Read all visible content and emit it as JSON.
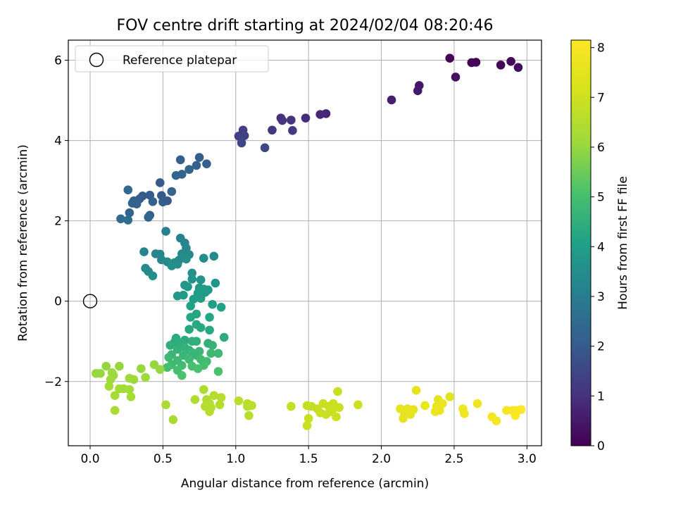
{
  "chart_data": {
    "type": "scatter",
    "title": "FOV centre drift starting at 2024/02/04 08:20:46",
    "xlabel": "Angular distance from reference (arcmin)",
    "ylabel": "Rotation from reference (arcmin)",
    "xlim": [
      -0.15,
      3.1
    ],
    "ylim": [
      -3.6,
      6.5
    ],
    "xticks": [
      "0.0",
      "0.5",
      "1.0",
      "1.5",
      "2.0",
      "2.5",
      "3.0"
    ],
    "yticks": [
      "−2",
      "0",
      "2",
      "4",
      "6"
    ],
    "grid": true,
    "legend": {
      "placement": "top-left",
      "entries": [
        "Reference platepar"
      ]
    },
    "reference_point": {
      "x": 0.0,
      "y": 0.0,
      "label": "Reference platepar",
      "marker": "open-circle"
    },
    "colorbar": {
      "label": "Hours from first FF file",
      "range": [
        0,
        8.15
      ],
      "ticks": [
        "0",
        "1",
        "2",
        "3",
        "4",
        "5",
        "6",
        "7",
        "8"
      ],
      "colormap": "viridis"
    },
    "points": [
      {
        "x": 2.47,
        "y": 6.05,
        "c": 0.05
      },
      {
        "x": 2.62,
        "y": 5.94,
        "c": 0.1
      },
      {
        "x": 2.65,
        "y": 5.95,
        "c": 0.12
      },
      {
        "x": 2.82,
        "y": 5.88,
        "c": 0.15
      },
      {
        "x": 2.89,
        "y": 5.97,
        "c": 0.18
      },
      {
        "x": 2.94,
        "y": 5.82,
        "c": 0.2
      },
      {
        "x": 2.51,
        "y": 5.58,
        "c": 0.3
      },
      {
        "x": 2.26,
        "y": 5.37,
        "c": 0.45
      },
      {
        "x": 2.25,
        "y": 5.24,
        "c": 0.5
      },
      {
        "x": 2.07,
        "y": 5.01,
        "c": 0.6
      },
      {
        "x": 1.62,
        "y": 4.67,
        "c": 0.8
      },
      {
        "x": 1.58,
        "y": 4.65,
        "c": 0.85
      },
      {
        "x": 1.48,
        "y": 4.56,
        "c": 0.9
      },
      {
        "x": 1.31,
        "y": 4.56,
        "c": 1.0
      },
      {
        "x": 1.32,
        "y": 4.5,
        "c": 1.05
      },
      {
        "x": 1.38,
        "y": 4.51,
        "c": 1.1
      },
      {
        "x": 1.25,
        "y": 4.26,
        "c": 1.15
      },
      {
        "x": 1.39,
        "y": 4.25,
        "c": 1.2
      },
      {
        "x": 1.05,
        "y": 4.26,
        "c": 1.3
      },
      {
        "x": 1.02,
        "y": 4.11,
        "c": 1.35
      },
      {
        "x": 1.06,
        "y": 4.12,
        "c": 1.4
      },
      {
        "x": 1.04,
        "y": 3.94,
        "c": 1.5
      },
      {
        "x": 1.2,
        "y": 3.82,
        "c": 1.5
      },
      {
        "x": 0.75,
        "y": 3.58,
        "c": 2.1
      },
      {
        "x": 0.62,
        "y": 3.52,
        "c": 2.1
      },
      {
        "x": 0.8,
        "y": 3.42,
        "c": 2.15
      },
      {
        "x": 0.73,
        "y": 3.38,
        "c": 2.2
      },
      {
        "x": 0.68,
        "y": 3.28,
        "c": 2.25
      },
      {
        "x": 0.63,
        "y": 3.16,
        "c": 2.3
      },
      {
        "x": 0.59,
        "y": 3.13,
        "c": 2.3
      },
      {
        "x": 0.48,
        "y": 2.95,
        "c": 2.0
      },
      {
        "x": 0.26,
        "y": 2.77,
        "c": 2.4
      },
      {
        "x": 0.56,
        "y": 2.73,
        "c": 2.3
      },
      {
        "x": 0.41,
        "y": 2.64,
        "c": 2.0
      },
      {
        "x": 0.36,
        "y": 2.62,
        "c": 2.0
      },
      {
        "x": 0.49,
        "y": 2.63,
        "c": 2.0
      },
      {
        "x": 0.3,
        "y": 2.5,
        "c": 2.1
      },
      {
        "x": 0.34,
        "y": 2.55,
        "c": 2.1
      },
      {
        "x": 0.43,
        "y": 2.48,
        "c": 2.2
      },
      {
        "x": 0.5,
        "y": 2.47,
        "c": 2.1
      },
      {
        "x": 0.53,
        "y": 2.5,
        "c": 2.0
      },
      {
        "x": 0.29,
        "y": 2.44,
        "c": 2.2
      },
      {
        "x": 0.32,
        "y": 2.42,
        "c": 2.2
      },
      {
        "x": 0.27,
        "y": 2.2,
        "c": 2.3
      },
      {
        "x": 0.41,
        "y": 2.14,
        "c": 2.2
      },
      {
        "x": 0.4,
        "y": 2.09,
        "c": 2.3
      },
      {
        "x": 0.21,
        "y": 2.05,
        "c": 2.5
      },
      {
        "x": 0.26,
        "y": 2.02,
        "c": 2.5
      },
      {
        "x": 0.52,
        "y": 1.74,
        "c": 3.1
      },
      {
        "x": 0.62,
        "y": 1.57,
        "c": 3.2
      },
      {
        "x": 0.65,
        "y": 1.45,
        "c": 3.2
      },
      {
        "x": 0.66,
        "y": 1.32,
        "c": 3.3
      },
      {
        "x": 0.37,
        "y": 1.23,
        "c": 3.2
      },
      {
        "x": 0.45,
        "y": 1.18,
        "c": 3.3
      },
      {
        "x": 0.48,
        "y": 1.17,
        "c": 3.3
      },
      {
        "x": 0.63,
        "y": 1.18,
        "c": 3.35
      },
      {
        "x": 0.68,
        "y": 1.16,
        "c": 3.4
      },
      {
        "x": 0.85,
        "y": 1.12,
        "c": 3.4
      },
      {
        "x": 0.78,
        "y": 1.07,
        "c": 3.45
      },
      {
        "x": 0.49,
        "y": 1.03,
        "c": 3.3
      },
      {
        "x": 0.53,
        "y": 0.98,
        "c": 3.4
      },
      {
        "x": 0.58,
        "y": 0.96,
        "c": 3.4
      },
      {
        "x": 0.61,
        "y": 1.02,
        "c": 3.4
      },
      {
        "x": 0.66,
        "y": 1.05,
        "c": 3.5
      },
      {
        "x": 0.56,
        "y": 0.88,
        "c": 3.5
      },
      {
        "x": 0.6,
        "y": 0.92,
        "c": 3.5
      },
      {
        "x": 0.38,
        "y": 0.82,
        "c": 3.4
      },
      {
        "x": 0.4,
        "y": 0.74,
        "c": 3.4
      },
      {
        "x": 0.7,
        "y": 0.7,
        "c": 3.6
      },
      {
        "x": 0.43,
        "y": 0.63,
        "c": 3.5
      },
      {
        "x": 0.7,
        "y": 0.55,
        "c": 3.7
      },
      {
        "x": 0.76,
        "y": 0.53,
        "c": 3.7
      },
      {
        "x": 0.86,
        "y": 0.45,
        "c": 3.7
      },
      {
        "x": 0.65,
        "y": 0.4,
        "c": 3.8
      },
      {
        "x": 0.67,
        "y": 0.36,
        "c": 3.8
      },
      {
        "x": 0.75,
        "y": 0.33,
        "c": 3.8
      },
      {
        "x": 0.78,
        "y": 0.3,
        "c": 3.9
      },
      {
        "x": 0.81,
        "y": 0.28,
        "c": 3.9
      },
      {
        "x": 0.74,
        "y": 0.2,
        "c": 3.9
      },
      {
        "x": 0.79,
        "y": 0.22,
        "c": 3.9
      },
      {
        "x": 0.6,
        "y": 0.13,
        "c": 3.8
      },
      {
        "x": 0.64,
        "y": 0.15,
        "c": 3.9
      },
      {
        "x": 0.71,
        "y": 0.05,
        "c": 4.0
      },
      {
        "x": 0.76,
        "y": 0.07,
        "c": 4.0
      },
      {
        "x": 0.84,
        "y": -0.08,
        "c": 4.0
      },
      {
        "x": 0.69,
        "y": -0.12,
        "c": 4.1
      },
      {
        "x": 0.9,
        "y": -0.15,
        "c": 4.1
      },
      {
        "x": 0.73,
        "y": -0.32,
        "c": 4.2
      },
      {
        "x": 0.69,
        "y": -0.4,
        "c": 4.2
      },
      {
        "x": 0.82,
        "y": -0.4,
        "c": 4.2
      },
      {
        "x": 0.73,
        "y": -0.58,
        "c": 4.3
      },
      {
        "x": 0.76,
        "y": -0.66,
        "c": 4.3
      },
      {
        "x": 0.68,
        "y": -0.7,
        "c": 4.3
      },
      {
        "x": 0.82,
        "y": -0.72,
        "c": 4.3
      },
      {
        "x": 0.59,
        "y": -0.92,
        "c": 4.4
      },
      {
        "x": 0.65,
        "y": -0.97,
        "c": 4.4
      },
      {
        "x": 0.92,
        "y": -0.9,
        "c": 4.4
      },
      {
        "x": 0.58,
        "y": -1.02,
        "c": 4.4
      },
      {
        "x": 0.7,
        "y": -1.0,
        "c": 4.5
      },
      {
        "x": 0.73,
        "y": -1.0,
        "c": 4.5
      },
      {
        "x": 0.55,
        "y": -1.1,
        "c": 4.5
      },
      {
        "x": 0.62,
        "y": -1.05,
        "c": 4.5
      },
      {
        "x": 0.81,
        "y": -1.05,
        "c": 4.5
      },
      {
        "x": 0.84,
        "y": -1.1,
        "c": 4.6
      },
      {
        "x": 0.6,
        "y": -1.2,
        "c": 4.6
      },
      {
        "x": 0.65,
        "y": -1.15,
        "c": 4.6
      },
      {
        "x": 0.68,
        "y": -1.22,
        "c": 4.6
      },
      {
        "x": 0.7,
        "y": -1.28,
        "c": 4.7
      },
      {
        "x": 0.75,
        "y": -1.25,
        "c": 4.7
      },
      {
        "x": 0.56,
        "y": -1.33,
        "c": 4.7
      },
      {
        "x": 0.64,
        "y": -1.35,
        "c": 4.7
      },
      {
        "x": 0.73,
        "y": -1.35,
        "c": 4.7
      },
      {
        "x": 0.83,
        "y": -1.3,
        "c": 4.8
      },
      {
        "x": 0.88,
        "y": -1.3,
        "c": 4.8
      },
      {
        "x": 0.54,
        "y": -1.4,
        "c": 4.8
      },
      {
        "x": 0.6,
        "y": -1.48,
        "c": 4.8
      },
      {
        "x": 0.68,
        "y": -1.45,
        "c": 4.8
      },
      {
        "x": 0.76,
        "y": -1.45,
        "c": 4.9
      },
      {
        "x": 0.8,
        "y": -1.5,
        "c": 4.9
      },
      {
        "x": 0.56,
        "y": -1.58,
        "c": 4.9
      },
      {
        "x": 0.63,
        "y": -1.6,
        "c": 4.9
      },
      {
        "x": 0.7,
        "y": -1.62,
        "c": 5.0
      },
      {
        "x": 0.78,
        "y": -1.6,
        "c": 5.0
      },
      {
        "x": 0.53,
        "y": -1.65,
        "c": 5.0
      },
      {
        "x": 0.6,
        "y": -1.72,
        "c": 5.0
      },
      {
        "x": 0.74,
        "y": -1.68,
        "c": 5.1
      },
      {
        "x": 0.88,
        "y": -1.75,
        "c": 5.1
      },
      {
        "x": 0.63,
        "y": -1.85,
        "c": 5.1
      },
      {
        "x": 0.04,
        "y": -1.8,
        "c": 6.0
      },
      {
        "x": 0.07,
        "y": -1.8,
        "c": 6.0
      },
      {
        "x": 0.11,
        "y": -1.62,
        "c": 6.0
      },
      {
        "x": 0.15,
        "y": -1.78,
        "c": 6.1
      },
      {
        "x": 0.2,
        "y": -1.62,
        "c": 6.0
      },
      {
        "x": 0.35,
        "y": -1.68,
        "c": 6.0
      },
      {
        "x": 0.44,
        "y": -1.58,
        "c": 6.0
      },
      {
        "x": 0.48,
        "y": -1.7,
        "c": 6.0
      },
      {
        "x": 0.16,
        "y": -1.85,
        "c": 6.1
      },
      {
        "x": 0.14,
        "y": -1.95,
        "c": 6.1
      },
      {
        "x": 0.27,
        "y": -1.92,
        "c": 6.1
      },
      {
        "x": 0.3,
        "y": -1.95,
        "c": 6.1
      },
      {
        "x": 0.38,
        "y": -1.9,
        "c": 6.1
      },
      {
        "x": 0.13,
        "y": -2.12,
        "c": 6.2
      },
      {
        "x": 0.2,
        "y": -2.18,
        "c": 6.2
      },
      {
        "x": 0.23,
        "y": -2.18,
        "c": 6.2
      },
      {
        "x": 0.27,
        "y": -2.2,
        "c": 6.2
      },
      {
        "x": 0.17,
        "y": -2.35,
        "c": 6.2
      },
      {
        "x": 0.28,
        "y": -2.38,
        "c": 6.2
      },
      {
        "x": 0.17,
        "y": -2.72,
        "c": 6.3
      },
      {
        "x": 0.52,
        "y": -2.58,
        "c": 6.3
      },
      {
        "x": 0.57,
        "y": -2.95,
        "c": 6.3
      },
      {
        "x": 0.72,
        "y": -2.45,
        "c": 6.4
      },
      {
        "x": 0.78,
        "y": -2.2,
        "c": 6.4
      },
      {
        "x": 0.8,
        "y": -2.45,
        "c": 6.4
      },
      {
        "x": 0.79,
        "y": -2.62,
        "c": 6.5
      },
      {
        "x": 0.82,
        "y": -2.55,
        "c": 6.5
      },
      {
        "x": 0.83,
        "y": -2.65,
        "c": 6.5
      },
      {
        "x": 0.85,
        "y": -2.35,
        "c": 6.5
      },
      {
        "x": 0.9,
        "y": -2.4,
        "c": 6.5
      },
      {
        "x": 0.89,
        "y": -2.58,
        "c": 6.5
      },
      {
        "x": 0.82,
        "y": -2.75,
        "c": 6.5
      },
      {
        "x": 1.02,
        "y": -2.48,
        "c": 6.6
      },
      {
        "x": 1.08,
        "y": -2.55,
        "c": 6.6
      },
      {
        "x": 1.11,
        "y": -2.6,
        "c": 6.6
      },
      {
        "x": 1.08,
        "y": -2.62,
        "c": 6.6
      },
      {
        "x": 1.09,
        "y": -2.85,
        "c": 6.6
      },
      {
        "x": 1.38,
        "y": -2.62,
        "c": 6.8
      },
      {
        "x": 1.49,
        "y": -2.6,
        "c": 6.8
      },
      {
        "x": 1.52,
        "y": -2.62,
        "c": 6.8
      },
      {
        "x": 1.56,
        "y": -2.68,
        "c": 6.8
      },
      {
        "x": 1.6,
        "y": -2.55,
        "c": 6.9
      },
      {
        "x": 1.64,
        "y": -2.62,
        "c": 6.9
      },
      {
        "x": 1.67,
        "y": -2.55,
        "c": 6.9
      },
      {
        "x": 1.7,
        "y": -2.25,
        "c": 6.9
      },
      {
        "x": 1.71,
        "y": -2.65,
        "c": 6.9
      },
      {
        "x": 1.58,
        "y": -2.78,
        "c": 6.9
      },
      {
        "x": 1.62,
        "y": -2.82,
        "c": 6.9
      },
      {
        "x": 1.66,
        "y": -2.75,
        "c": 6.9
      },
      {
        "x": 1.69,
        "y": -2.88,
        "c": 7.0
      },
      {
        "x": 1.5,
        "y": -2.92,
        "c": 6.9
      },
      {
        "x": 1.49,
        "y": -3.1,
        "c": 6.9
      },
      {
        "x": 1.84,
        "y": -2.58,
        "c": 7.0
      },
      {
        "x": 2.24,
        "y": -2.22,
        "c": 7.5
      },
      {
        "x": 2.47,
        "y": -2.38,
        "c": 7.5
      },
      {
        "x": 2.39,
        "y": -2.45,
        "c": 7.6
      },
      {
        "x": 2.13,
        "y": -2.68,
        "c": 7.6
      },
      {
        "x": 2.18,
        "y": -2.68,
        "c": 7.6
      },
      {
        "x": 2.22,
        "y": -2.7,
        "c": 7.6
      },
      {
        "x": 2.16,
        "y": -2.8,
        "c": 7.6
      },
      {
        "x": 2.2,
        "y": -2.82,
        "c": 7.6
      },
      {
        "x": 2.3,
        "y": -2.6,
        "c": 7.7
      },
      {
        "x": 2.38,
        "y": -2.62,
        "c": 7.7
      },
      {
        "x": 2.42,
        "y": -2.55,
        "c": 7.7
      },
      {
        "x": 2.37,
        "y": -2.75,
        "c": 7.7
      },
      {
        "x": 2.4,
        "y": -2.72,
        "c": 7.7
      },
      {
        "x": 2.15,
        "y": -2.92,
        "c": 7.6
      },
      {
        "x": 2.56,
        "y": -2.68,
        "c": 7.8
      },
      {
        "x": 2.57,
        "y": -2.8,
        "c": 7.8
      },
      {
        "x": 2.66,
        "y": -2.55,
        "c": 7.8
      },
      {
        "x": 2.76,
        "y": -2.88,
        "c": 7.9
      },
      {
        "x": 2.79,
        "y": -2.98,
        "c": 7.9
      },
      {
        "x": 2.86,
        "y": -2.72,
        "c": 8.0
      },
      {
        "x": 2.9,
        "y": -2.72,
        "c": 8.0
      },
      {
        "x": 2.93,
        "y": -2.72,
        "c": 8.1
      },
      {
        "x": 2.96,
        "y": -2.7,
        "c": 8.1
      },
      {
        "x": 2.92,
        "y": -2.85,
        "c": 8.1
      }
    ]
  }
}
